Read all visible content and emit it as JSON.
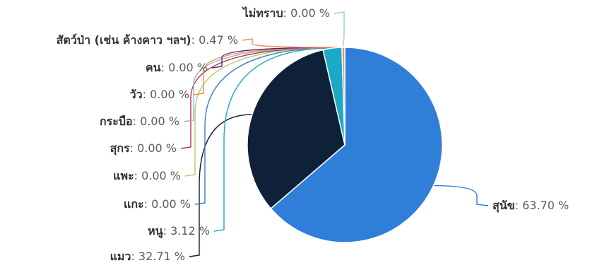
{
  "chart_data": {
    "type": "pie",
    "title": "",
    "unit": "%",
    "slices": [
      {
        "name": "สุนัข",
        "value": 63.7,
        "display": "63.70",
        "color": "#2f7fd8"
      },
      {
        "name": "แมว",
        "value": 32.71,
        "display": "32.71",
        "color": "#0f2039"
      },
      {
        "name": "หนู",
        "value": 3.12,
        "display": "3.12",
        "color": "#1aa9c6"
      },
      {
        "name": "แกะ",
        "value": 0.0,
        "display": "0.00",
        "color": "#3a7fc1"
      },
      {
        "name": "แพะ",
        "value": 0.0,
        "display": "0.00",
        "color": "#b7c96f"
      },
      {
        "name": "สุกร",
        "value": 0.0,
        "display": "0.00",
        "color": "#c0323f"
      },
      {
        "name": "กระบือ",
        "value": 0.0,
        "display": "0.00",
        "color": "#8fb2dc"
      },
      {
        "name": "วัว",
        "value": 0.0,
        "display": "0.00",
        "color": "#f08a35"
      },
      {
        "name": "คน",
        "value": 0.0,
        "display": "0.00",
        "color": "#4a2a78"
      },
      {
        "name": "สัตว์ป่า (เช่น ค้างคาว ฯลฯ)",
        "value": 0.47,
        "display": "0.47",
        "color": "#ef8a6a"
      },
      {
        "name": "ไม่ทราบ",
        "value": 0.0,
        "display": "0.00",
        "color": "#9ec4e6"
      }
    ]
  }
}
